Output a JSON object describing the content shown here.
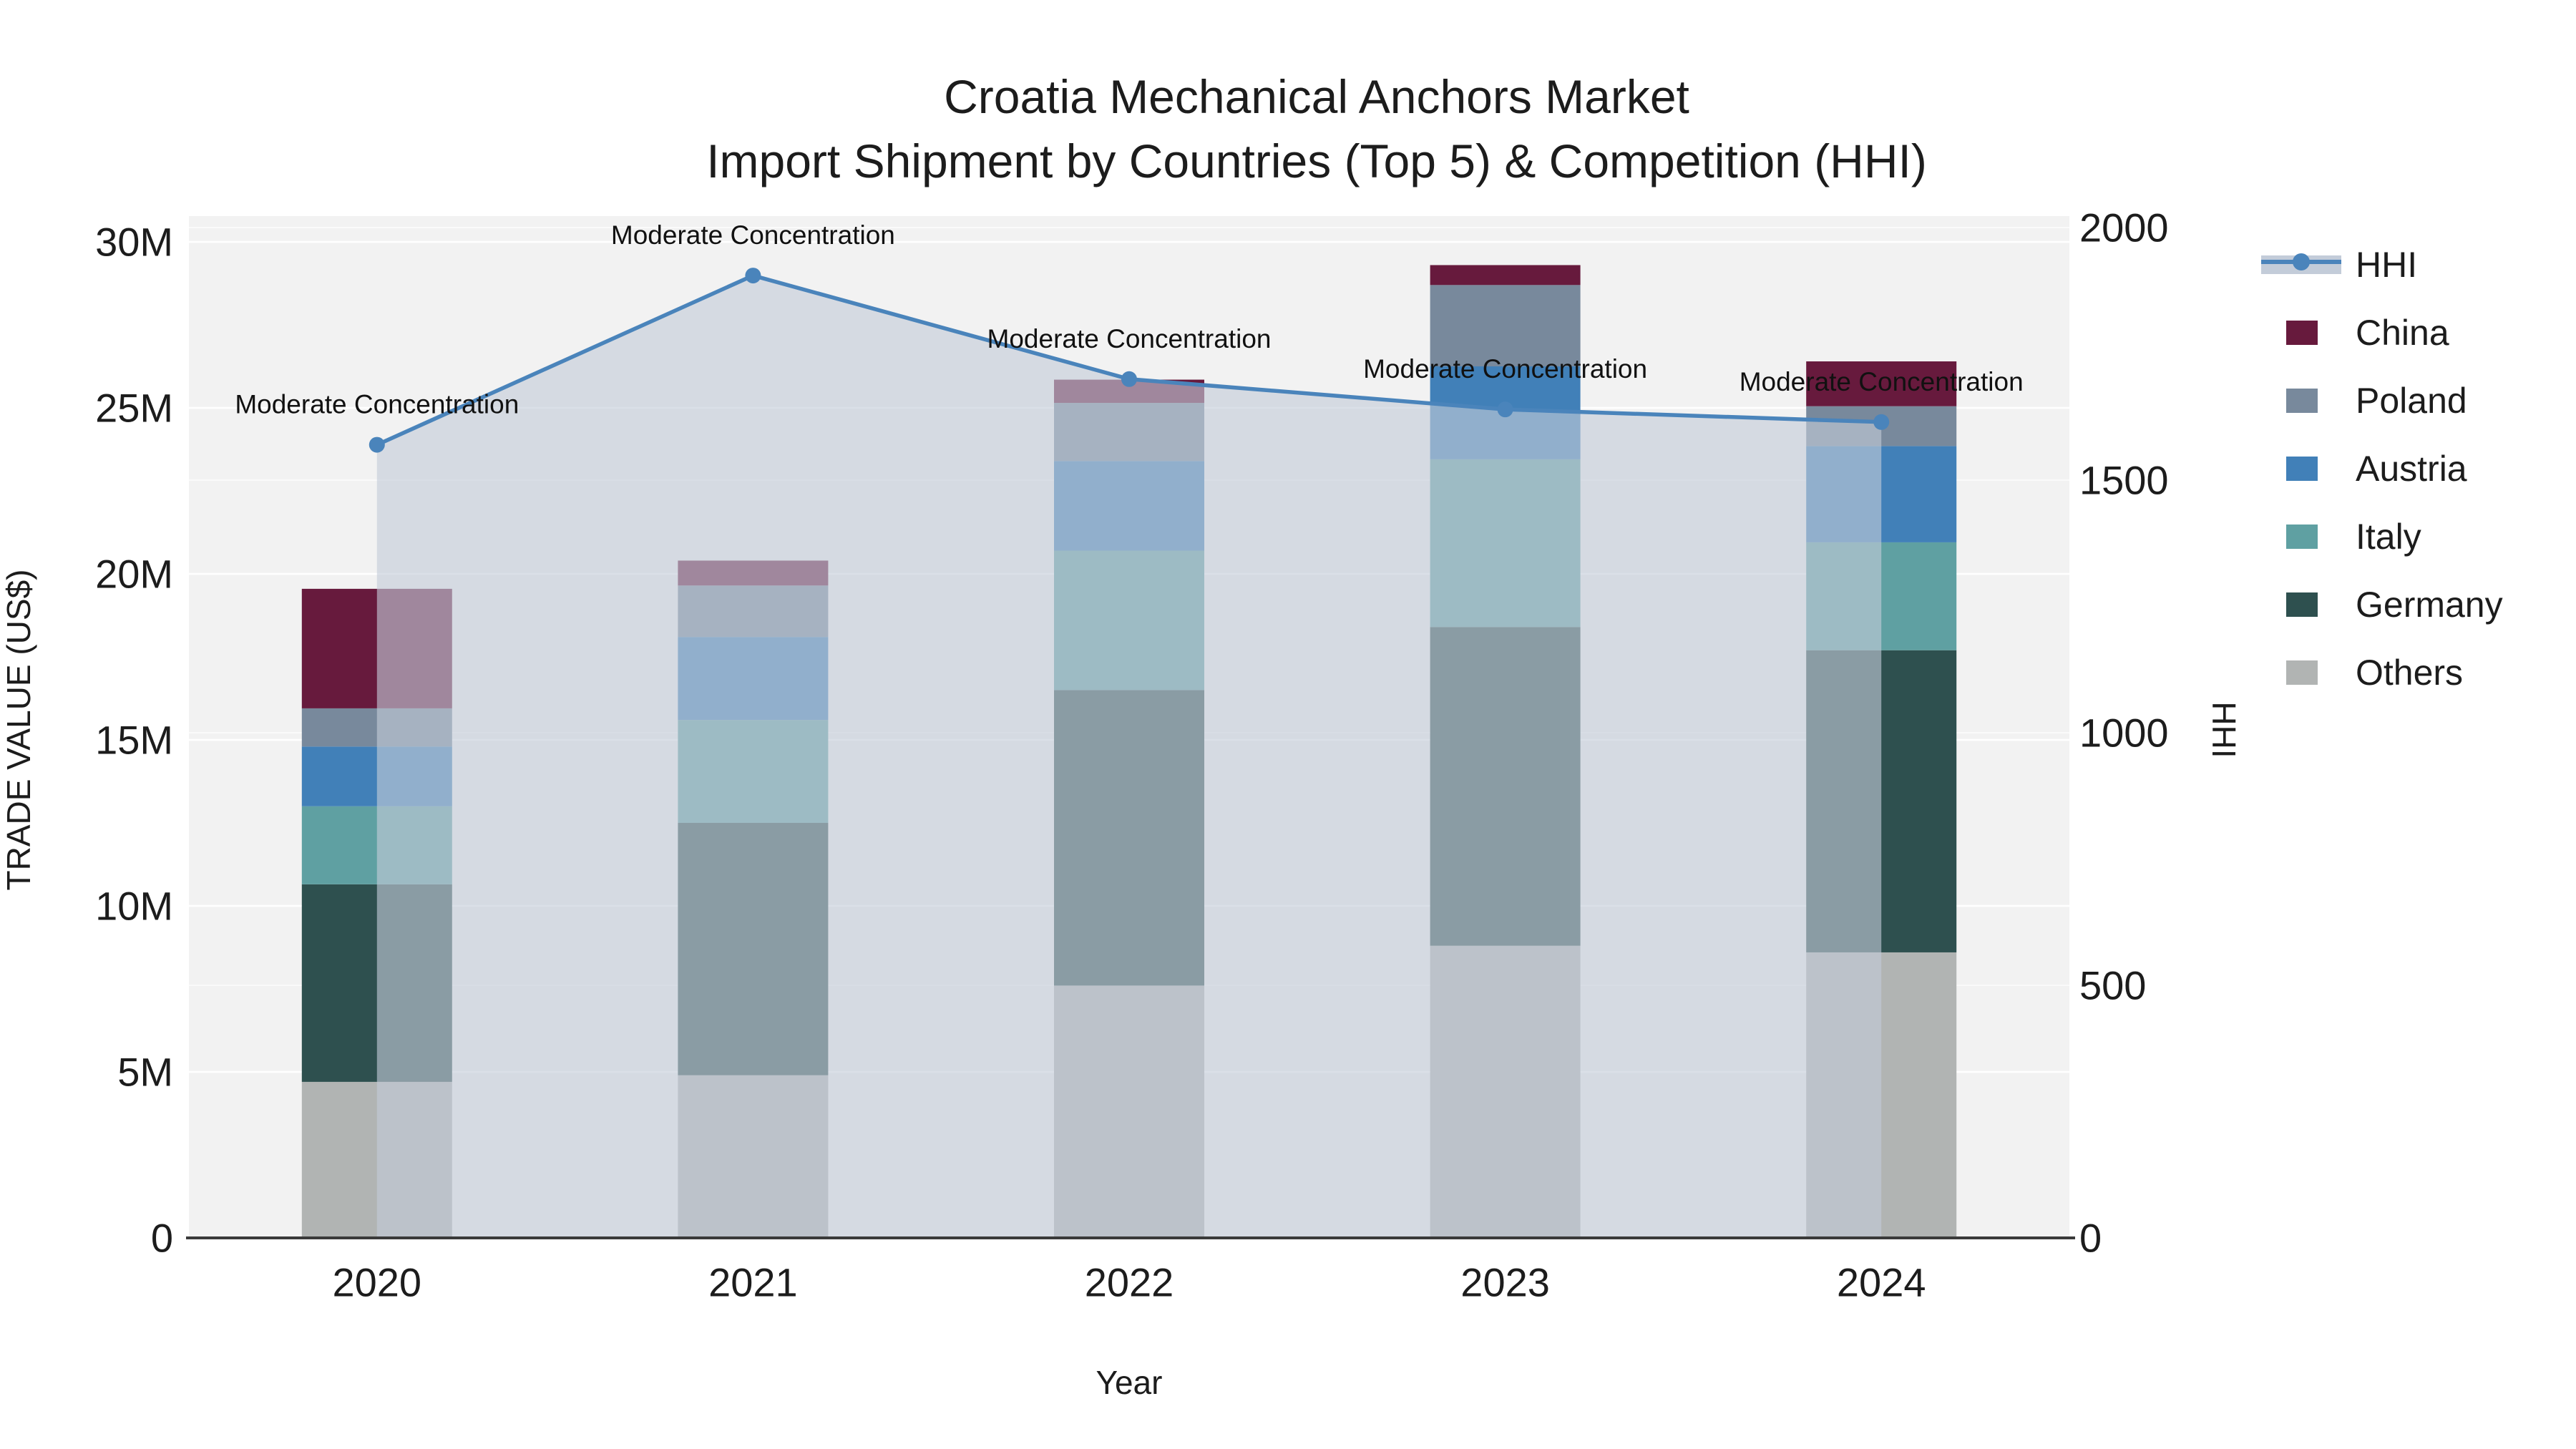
{
  "title": {
    "line1": "Croatia Mechanical Anchors Market",
    "line2": "Import Shipment by Countries (Top 5) & Competition (HHI)"
  },
  "chart_data": {
    "type": "bar+line",
    "subtype": "stacked bars (left axis, trade value US$) with HHI line+area overlay (right axis)",
    "categories": [
      "2020",
      "2021",
      "2022",
      "2023",
      "2024"
    ],
    "bar_value_unit": "millions of US$",
    "series": [
      {
        "name": "Others",
        "color": "#B1B4B3",
        "values": [
          4.7,
          4.9,
          7.6,
          8.8,
          8.6
        ]
      },
      {
        "name": "Germany",
        "color": "#2E504F",
        "values": [
          5.95,
          7.6,
          8.9,
          9.6,
          9.1
        ]
      },
      {
        "name": "Italy",
        "color": "#5FA0A2",
        "values": [
          2.35,
          3.1,
          4.2,
          5.05,
          3.25
        ]
      },
      {
        "name": "Austria",
        "color": "#4180B8",
        "values": [
          1.8,
          2.5,
          2.7,
          2.8,
          2.9
        ]
      },
      {
        "name": "Poland",
        "color": "#78899C",
        "values": [
          1.15,
          1.55,
          1.75,
          2.45,
          1.2
        ]
      },
      {
        "name": "China",
        "color": "#671A3D",
        "values": [
          3.6,
          0.75,
          0.7,
          0.6,
          1.35
        ]
      }
    ],
    "stack_totals_millions": [
      19.55,
      20.4,
      25.85,
      29.3,
      26.4
    ],
    "hhi": {
      "name": "HHI",
      "line_color": "#4A84BB",
      "area_color": "#C3CCD9",
      "values": [
        1570,
        1905,
        1700,
        1640,
        1615
      ]
    },
    "annotations": [
      "Moderate Concentration",
      "Moderate Concentration",
      "Moderate Concentration",
      "Moderate Concentration",
      "Moderate Concentration"
    ],
    "axes": {
      "left": {
        "title": "TRADE VALUE (US$)",
        "range_millions": [
          0,
          30.6
        ],
        "ticks": [
          {
            "v": 0,
            "label": "0"
          },
          {
            "v": 5,
            "label": "5M"
          },
          {
            "v": 10,
            "label": "10M"
          },
          {
            "v": 15,
            "label": "15M"
          },
          {
            "v": 20,
            "label": "20M"
          },
          {
            "v": 25,
            "label": "25M"
          },
          {
            "v": 30,
            "label": "30M"
          }
        ]
      },
      "right": {
        "title": "HHI",
        "range": [
          0,
          2011
        ],
        "ticks": [
          {
            "v": 0,
            "label": "0"
          },
          {
            "v": 500,
            "label": "500"
          },
          {
            "v": 1000,
            "label": "1000"
          },
          {
            "v": 1500,
            "label": "1500"
          },
          {
            "v": 2000,
            "label": "2000"
          }
        ]
      },
      "x": {
        "title": "Year"
      }
    },
    "legend": [
      {
        "label": "HHI",
        "type": "line",
        "color": "#4A84BB"
      },
      {
        "label": "China",
        "type": "swatch",
        "color": "#671A3D"
      },
      {
        "label": "Poland",
        "type": "swatch",
        "color": "#78899C"
      },
      {
        "label": "Austria",
        "type": "swatch",
        "color": "#4180B8"
      },
      {
        "label": "Italy",
        "type": "swatch",
        "color": "#5FA0A2"
      },
      {
        "label": "Germany",
        "type": "swatch",
        "color": "#2E504F"
      },
      {
        "label": "Others",
        "type": "swatch",
        "color": "#B1B4B3"
      }
    ],
    "layout_hints": {
      "plot_background": "#F2F2F2",
      "grid": "on (white, both axes)",
      "legend_position": "right, outside plot",
      "axis_line_color": "#3A3A3A"
    }
  }
}
